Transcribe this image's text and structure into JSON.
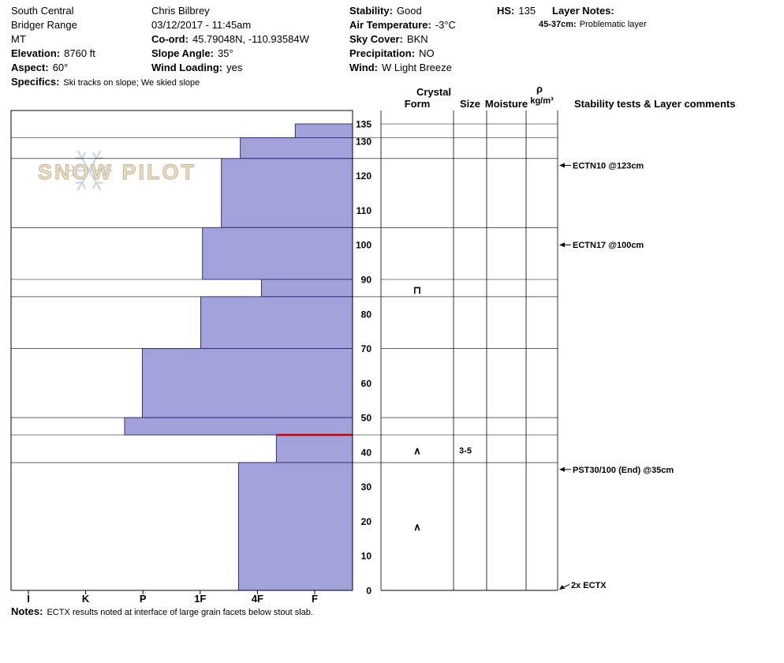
{
  "header": {
    "region_line1": "South Central",
    "region_line2": "Bridger Range",
    "region_line3": "MT",
    "elevation_label": "Elevation:",
    "elevation_value": "8760 ft",
    "aspect_label": "Aspect:",
    "aspect_value": "60°",
    "specifics_label": "Specifics:",
    "specifics_value": "Ski tracks on slope; We skied slope",
    "observer": "Chris Bilbrey",
    "datetime": "03/12/2017 - 11:45am",
    "coord_label": "Co-ord:",
    "coord_value": "45.79048N, -110.93584W",
    "slope_angle_label": "Slope Angle:",
    "slope_angle_value": "35°",
    "wind_loading_label": "Wind Loading:",
    "wind_loading_value": "yes",
    "stability_label": "Stability:",
    "stability_value": "Good",
    "air_temp_label": "Air Temperature:",
    "air_temp_value": "-3°C",
    "sky_cover_label": "Sky Cover:",
    "sky_cover_value": "BKN",
    "precipitation_label": "Precipitation:",
    "precipitation_value": "NO",
    "wind_label": "Wind:",
    "wind_value": "W Light Breeze",
    "hs_label": "HS:",
    "hs_value": "135",
    "layer_notes_label": "Layer Notes:",
    "layer_note_depth": "45-37cm:",
    "layer_note_text": "Problematic layer"
  },
  "logo": {
    "text": "SNOW PILOT"
  },
  "chart_headers": {
    "crystal": "Crystal",
    "form": "Form",
    "size": "Size",
    "moisture": "Moisture",
    "density_symbol": "ρ",
    "density_units": "kg/m³",
    "stability": "Stability tests & Layer comments"
  },
  "notes": {
    "label": "Notes:",
    "text": "ECTX results noted at interface of large grain facets below stout slab."
  },
  "chart_data": {
    "type": "bar",
    "subtype": "snow-profile-hardness",
    "title": "Snow profile hardness vs depth",
    "hs_cm": 135,
    "depth_axis": {
      "min": 0,
      "max": 135,
      "tick_step": 10,
      "extra_tick": 135,
      "unit": "cm"
    },
    "hardness_axis": {
      "categories": [
        "I",
        "K",
        "P",
        "1F",
        "4F",
        "F"
      ]
    },
    "layers": [
      {
        "top_cm": 135,
        "bottom_cm": 131,
        "hardness": "F-",
        "hardness_index": 4.66
      },
      {
        "top_cm": 131,
        "bottom_cm": 125,
        "hardness": "4F+",
        "hardness_index": 3.7
      },
      {
        "top_cm": 125,
        "bottom_cm": 105,
        "hardness": "1F-4F",
        "hardness_index": 3.37
      },
      {
        "top_cm": 105,
        "bottom_cm": 90,
        "hardness": "1F",
        "hardness_index": 3.04
      },
      {
        "top_cm": 90,
        "bottom_cm": 85,
        "hardness": "4F",
        "hardness_index": 4.07
      },
      {
        "top_cm": 85,
        "bottom_cm": 70,
        "hardness": "1F",
        "hardness_index": 3.01
      },
      {
        "top_cm": 70,
        "bottom_cm": 50,
        "hardness": "P",
        "hardness_index": 1.99
      },
      {
        "top_cm": 50,
        "bottom_cm": 45,
        "hardness": "P+",
        "hardness_index": 1.68
      },
      {
        "top_cm": 45,
        "bottom_cm": 37,
        "hardness": "4F-F",
        "hardness_index": 4.33,
        "problematic": true
      },
      {
        "top_cm": 37,
        "bottom_cm": 0,
        "hardness": "4F+",
        "hardness_index": 3.67
      }
    ],
    "grain_symbols": [
      {
        "depth_cm": 87,
        "form": "⊓",
        "size": ""
      },
      {
        "depth_cm": 40.5,
        "form": "∧",
        "size": "3-5"
      },
      {
        "depth_cm": 18.5,
        "form": "∧",
        "size": ""
      }
    ],
    "stability_tests": [
      {
        "depth_cm": 123,
        "label": "ECTN10 @123cm"
      },
      {
        "depth_cm": 100,
        "label": "ECTN17 @100cm"
      },
      {
        "depth_cm": 35,
        "label": "PST30/100 (End) @35cm"
      },
      {
        "depth_cm": 0,
        "label": "2x ECTX",
        "slanted": true
      }
    ],
    "colors": {
      "bar_fill": "#a2a2db",
      "bar_stroke": "#30307c",
      "problem_line": "#cc0000",
      "grid": "#000000",
      "logo_flake": "#c9d6e4",
      "logo_text": "#e7dcc6",
      "logo_text_outline": "#c8b28e"
    }
  }
}
